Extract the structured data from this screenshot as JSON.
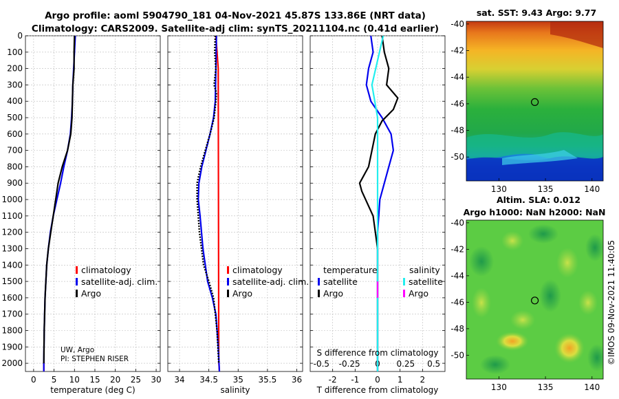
{
  "title_line1": "Argo profile: aoml 5904790_181 04-Nov-2021 45.87S 133.86E (NRT data)",
  "title_line2": "Climatology: CARS2009. Satellite-adj clim: synTS_20211104.nc (0.41d earlier)",
  "watermark": "©IMOS 09-Nov-2021 11:40:05",
  "credit": {
    "line1": "UW, Argo",
    "line2": "PI: STEPHEN RISER"
  },
  "colors": {
    "climatology": "#ff0000",
    "satellite_adj": "#0000ee",
    "argo": "#000000",
    "sal_satellite": "#22eeee",
    "sal_argo": "#ff00ff"
  },
  "chart_data": [
    {
      "type": "line",
      "xlabel": "temperature (deg C)",
      "xlim": [
        -2,
        31
      ],
      "xticks": [
        "0",
        "5",
        "10",
        "15",
        "20",
        "25",
        "30"
      ],
      "ylim": [
        0,
        2050
      ],
      "yticks": [
        "0",
        "100",
        "200",
        "300",
        "400",
        "500",
        "600",
        "700",
        "800",
        "900",
        "1000",
        "1100",
        "1200",
        "1300",
        "1400",
        "1500",
        "1600",
        "1700",
        "1800",
        "1900",
        "2000"
      ],
      "legend": [
        "climatology",
        "satellite-adj. clim.",
        "Argo"
      ],
      "series": [
        {
          "name": "climatology",
          "x": [
            2.5,
            2.5
          ],
          "y": [
            1990,
            2050
          ]
        },
        {
          "name": "satellite-adj. clim.",
          "x": [
            10.2,
            10.0,
            9.8,
            9.6,
            9.5,
            9.3,
            9.0,
            8.3,
            7.4,
            6.6,
            5.7,
            4.8,
            4.1,
            3.6,
            3.2,
            3.0,
            2.8,
            2.6,
            2.5,
            2.5
          ],
          "y": [
            0,
            100,
            200,
            300,
            400,
            500,
            600,
            700,
            800,
            900,
            1000,
            1100,
            1200,
            1300,
            1400,
            1500,
            1600,
            1800,
            1990,
            2050
          ]
        },
        {
          "name": "Argo",
          "x": [
            10.0,
            9.9,
            9.9,
            9.6,
            9.5,
            9.4,
            9.1,
            8.3,
            7.0,
            6.0,
            5.4,
            4.8,
            4.2,
            3.6,
            3.2,
            3.0,
            2.8,
            2.6,
            2.5
          ],
          "y": [
            0,
            100,
            200,
            300,
            400,
            500,
            600,
            700,
            800,
            900,
            1000,
            1100,
            1200,
            1300,
            1400,
            1500,
            1600,
            1800,
            2000
          ]
        }
      ]
    },
    {
      "type": "line",
      "xlabel": "salinity",
      "xlim": [
        33.8,
        36.1
      ],
      "xticks": [
        "34",
        "34.5",
        "35",
        "35.5",
        "36"
      ],
      "ylim": [
        0,
        2050
      ],
      "legend": [
        "climatology",
        "satellite-adj. clim.",
        "Argo"
      ],
      "series": [
        {
          "name": "climatology",
          "x": [
            34.62,
            34.63,
            34.64,
            34.65,
            34.66,
            34.67,
            34.68
          ],
          "y": [
            0,
            50,
            100,
            150,
            200,
            1990,
            2050
          ]
        },
        {
          "name": "satellite-adj. clim.",
          "x": [
            34.63,
            34.62,
            34.61,
            34.58,
            34.52,
            34.45,
            34.38,
            34.33,
            34.32,
            34.35,
            34.4,
            34.48,
            34.56,
            34.62,
            34.66,
            34.68
          ],
          "y": [
            0,
            200,
            400,
            500,
            600,
            700,
            800,
            900,
            1000,
            1100,
            1300,
            1500,
            1600,
            1700,
            1900,
            2050
          ]
        },
        {
          "name": "Argo",
          "x": [
            34.61,
            34.6,
            34.62,
            34.59,
            34.63,
            34.62,
            34.59,
            34.52,
            34.44,
            34.36,
            34.3,
            34.3,
            34.34,
            34.41,
            34.5,
            34.58,
            34.64,
            34.67
          ],
          "y": [
            0,
            100,
            200,
            300,
            350,
            400,
            500,
            600,
            700,
            800,
            900,
            1000,
            1200,
            1400,
            1500,
            1600,
            1800,
            2000
          ]
        }
      ]
    },
    {
      "type": "line",
      "xlabel": "T difference from climatology",
      "xlim": [
        -3,
        3
      ],
      "xticks_T": [
        "-2",
        "-1",
        "0",
        "1",
        "2"
      ],
      "secondary_xlabel": "S difference from climatology",
      "xticks_S": [
        "-0.5",
        "-0.25",
        "0",
        "0.25",
        "0.5"
      ],
      "ylim": [
        0,
        2050
      ],
      "legend_temperature_title": "temperature",
      "legend_salinity_title": "salinity",
      "legend_temperature": [
        "satellite",
        "Argo"
      ],
      "legend_salinity": [
        "satellite",
        "Argo"
      ],
      "series": [
        {
          "name": "temperature satellite",
          "x": [
            -0.3,
            -0.2,
            -0.4,
            -0.5,
            -0.3,
            0.2,
            0.6,
            0.7,
            0.5,
            0.3,
            0.1,
            0.0,
            0.0,
            0.0,
            0.0
          ],
          "y": [
            0,
            100,
            200,
            300,
            400,
            500,
            600,
            700,
            800,
            900,
            1000,
            1200,
            1400,
            1600,
            2050
          ]
        },
        {
          "name": "temperature Argo",
          "x": [
            0.2,
            0.3,
            0.5,
            0.4,
            0.9,
            0.7,
            0.2,
            -0.1,
            -0.4,
            -0.8,
            -0.7,
            -0.2,
            0.0,
            0.0,
            0.0,
            0.0
          ],
          "y": [
            0,
            100,
            200,
            300,
            380,
            450,
            520,
            600,
            800,
            900,
            950,
            1100,
            1300,
            1600,
            1800,
            2050
          ]
        },
        {
          "name": "salinity satellite",
          "x": [
            0.05,
            0.0,
            -0.05,
            0.0,
            0.0,
            0.0,
            0.0,
            0.0
          ],
          "y": [
            0,
            150,
            300,
            500,
            800,
            1200,
            1600,
            2050
          ]
        },
        {
          "name": "salinity Argo",
          "x": [
            0.0,
            0.0
          ],
          "y": [
            1500,
            1600
          ]
        }
      ]
    },
    {
      "type": "heatmap",
      "title": "sat. SST: 9.43 Argo: 9.77",
      "xticks": [
        "130",
        "135",
        "140"
      ],
      "yticks": [
        "-40",
        "-42",
        "-44",
        "-46",
        "-48",
        "-50"
      ],
      "xlim": [
        126.5,
        141.2
      ],
      "ylim": [
        -51.8,
        -39.8
      ],
      "argo_position": [
        133.86,
        -45.87
      ]
    },
    {
      "type": "heatmap",
      "title_line1": "Altim. SLA: 0.012",
      "title_line2": "Argo h1000: NaN h2000: NaN",
      "xticks": [
        "130",
        "135",
        "140"
      ],
      "yticks": [
        "-40",
        "-42",
        "-44",
        "-46",
        "-48",
        "-50"
      ],
      "xlim": [
        126.5,
        141.2
      ],
      "ylim": [
        -51.8,
        -39.8
      ],
      "argo_position": [
        133.86,
        -45.87
      ]
    }
  ]
}
